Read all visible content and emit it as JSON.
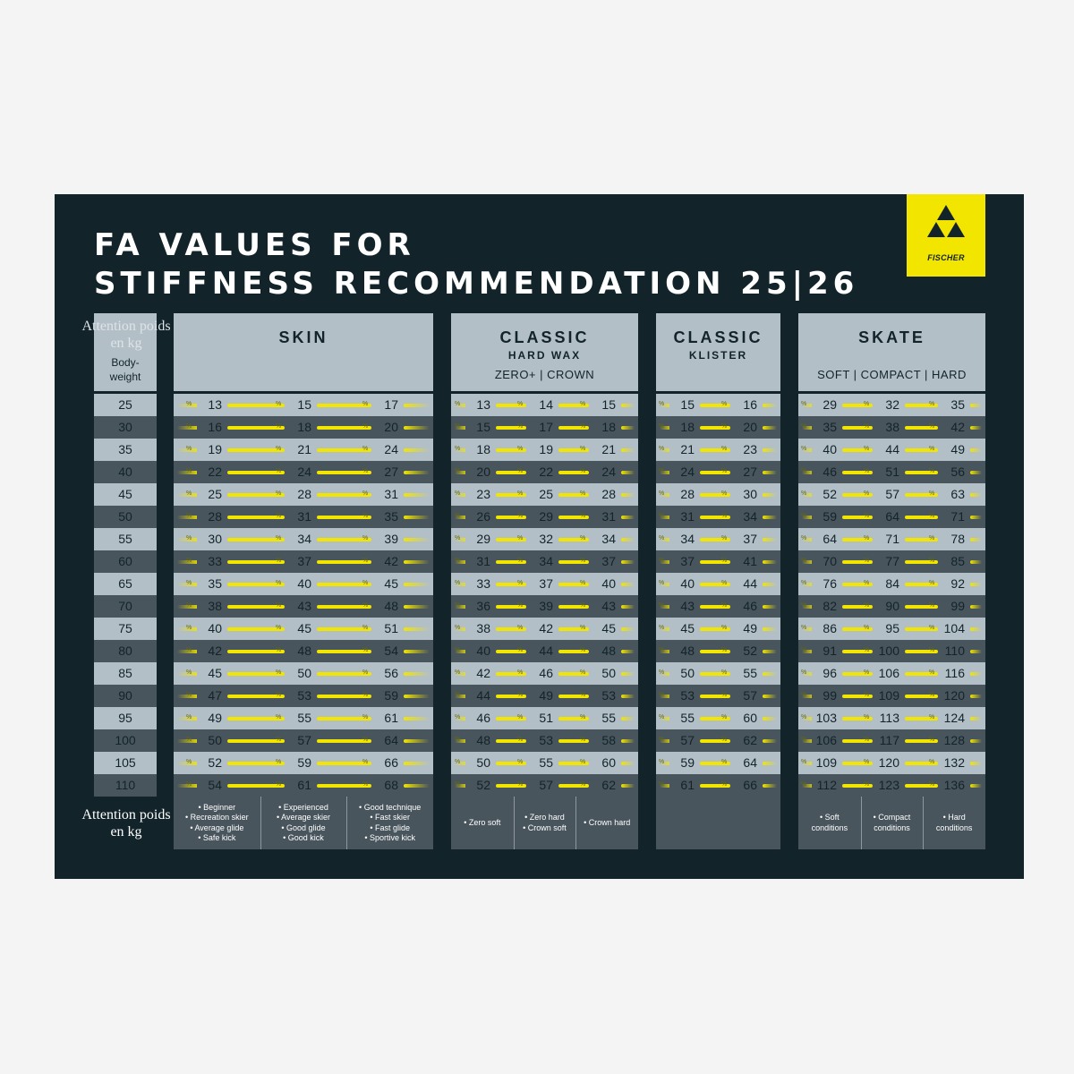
{
  "title_line1": "FA VALUES FOR",
  "title_line2": "STIFFNESS RECOMMENDATION 25|26",
  "brand": "FISCHER",
  "attention_top": "Attention poids en kg",
  "attention_bottom": "Attention poids en kg",
  "bodyweight_label": "Body-\nweight",
  "weights": [
    "25",
    "30",
    "35",
    "40",
    "45",
    "50",
    "55",
    "60",
    "65",
    "70",
    "75",
    "80",
    "85",
    "90",
    "95",
    "100",
    "105",
    "110"
  ],
  "sections": [
    {
      "id": "skin",
      "title": "SKIN",
      "subtitle": "",
      "variants": "",
      "columns": [
        [
          "13",
          "16",
          "19",
          "22",
          "25",
          "28",
          "30",
          "33",
          "35",
          "38",
          "40",
          "42",
          "45",
          "47",
          "49",
          "50",
          "52",
          "54"
        ],
        [
          "15",
          "18",
          "21",
          "24",
          "28",
          "31",
          "34",
          "37",
          "40",
          "43",
          "45",
          "48",
          "50",
          "53",
          "55",
          "57",
          "59",
          "61"
        ],
        [
          "17",
          "20",
          "24",
          "27",
          "31",
          "35",
          "39",
          "42",
          "45",
          "48",
          "51",
          "54",
          "56",
          "59",
          "61",
          "64",
          "66",
          "68"
        ]
      ],
      "footer": [
        [
          "• Beginner",
          "• Recreation skier",
          "• Average glide",
          "• Safe kick"
        ],
        [
          "• Experienced",
          "• Average skier",
          "• Good glide",
          "• Good kick"
        ],
        [
          "• Good technique",
          "• Fast skier",
          "• Fast glide",
          "• Sportive kick"
        ]
      ]
    },
    {
      "id": "classic-hardwax",
      "title": "CLASSIC",
      "subtitle": "HARD WAX",
      "variants": "ZERO+  |  CROWN",
      "columns": [
        [
          "13",
          "15",
          "18",
          "20",
          "23",
          "26",
          "29",
          "31",
          "33",
          "36",
          "38",
          "40",
          "42",
          "44",
          "46",
          "48",
          "50",
          "52"
        ],
        [
          "14",
          "17",
          "19",
          "22",
          "25",
          "29",
          "32",
          "34",
          "37",
          "39",
          "42",
          "44",
          "46",
          "49",
          "51",
          "53",
          "55",
          "57"
        ],
        [
          "15",
          "18",
          "21",
          "24",
          "28",
          "31",
          "34",
          "37",
          "40",
          "43",
          "45",
          "48",
          "50",
          "53",
          "55",
          "58",
          "60",
          "62"
        ]
      ],
      "footer": [
        [
          "• Zero soft"
        ],
        [
          "• Zero hard",
          "• Crown soft"
        ],
        [
          "• Crown hard"
        ]
      ]
    },
    {
      "id": "classic-klister",
      "title": "CLASSIC",
      "subtitle": "KLISTER",
      "variants": "",
      "columns": [
        [
          "15",
          "18",
          "21",
          "24",
          "28",
          "31",
          "34",
          "37",
          "40",
          "43",
          "45",
          "48",
          "50",
          "53",
          "55",
          "57",
          "59",
          "61"
        ],
        [
          "16",
          "20",
          "23",
          "27",
          "30",
          "34",
          "37",
          "41",
          "44",
          "46",
          "49",
          "52",
          "55",
          "57",
          "60",
          "62",
          "64",
          "66"
        ]
      ],
      "footer": []
    },
    {
      "id": "skate",
      "title": "SKATE",
      "subtitle": "",
      "variants": "SOFT  |  COMPACT  |  HARD",
      "columns": [
        [
          "29",
          "35",
          "40",
          "46",
          "52",
          "59",
          "64",
          "70",
          "76",
          "82",
          "86",
          "91",
          "96",
          "99",
          "103",
          "106",
          "109",
          "112"
        ],
        [
          "32",
          "38",
          "44",
          "51",
          "57",
          "64",
          "71",
          "77",
          "84",
          "90",
          "95",
          "100",
          "106",
          "109",
          "113",
          "117",
          "120",
          "123"
        ],
        [
          "35",
          "42",
          "49",
          "56",
          "63",
          "71",
          "78",
          "85",
          "92",
          "99",
          "104",
          "110",
          "116",
          "120",
          "124",
          "128",
          "132",
          "136"
        ]
      ],
      "footer": [
        [
          "• Soft",
          "conditions"
        ],
        [
          "• Compact",
          "conditions"
        ],
        [
          "• Hard",
          "conditions"
        ]
      ]
    }
  ],
  "colors": {
    "background": "#12232a",
    "light_row": "#b3bfc7",
    "dark_row": "#49555d",
    "accent": "#f2e500"
  }
}
